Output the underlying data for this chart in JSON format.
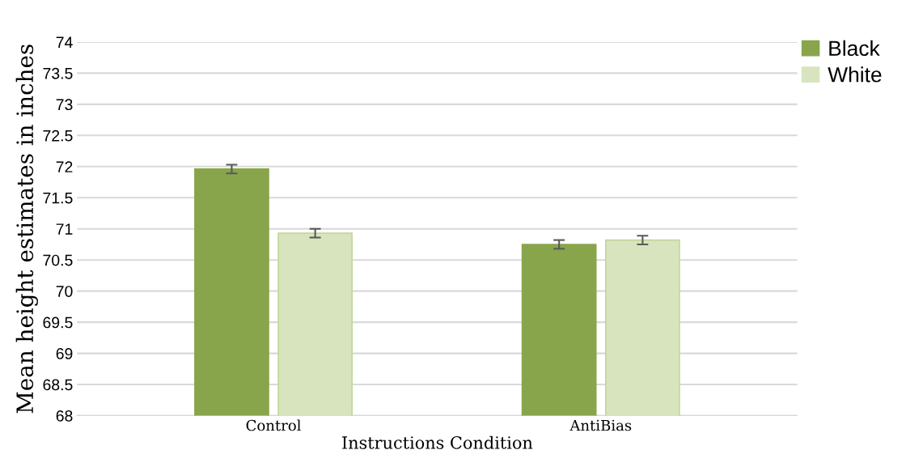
{
  "chart_data": {
    "type": "bar",
    "xlabel": "Instructions Condition",
    "ylabel": "Mean height estimates in inches",
    "categories": [
      "Control",
      "AntiBias"
    ],
    "series": [
      {
        "name": "Black",
        "color": "#88a54b",
        "values": [
          71.96,
          70.75
        ],
        "errors": [
          0.07,
          0.07
        ]
      },
      {
        "name": "White",
        "color": "#d7e4bd",
        "values": [
          70.93,
          70.82
        ],
        "errors": [
          0.07,
          0.07
        ]
      }
    ],
    "ylim": [
      68,
      74
    ],
    "yticks": [
      68,
      68.5,
      69,
      69.5,
      70,
      70.5,
      71,
      71.5,
      72,
      72.5,
      73,
      73.5,
      74
    ],
    "grid": "y",
    "legend": "top right"
  }
}
